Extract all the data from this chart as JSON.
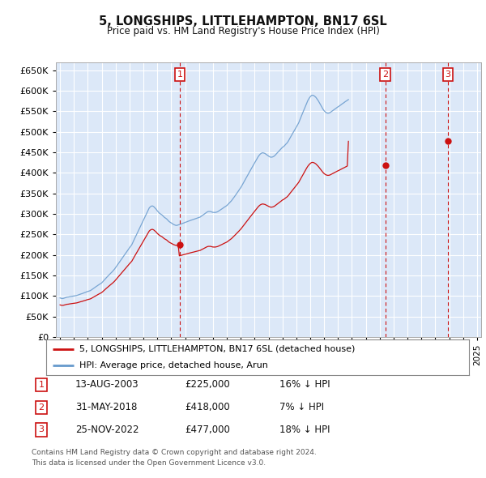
{
  "title": "5, LONGSHIPS, LITTLEHAMPTON, BN17 6SL",
  "subtitle": "Price paid vs. HM Land Registry's House Price Index (HPI)",
  "bg_color": "#ffffff",
  "plot_bg_color": "#dce8f8",
  "grid_color": "#ffffff",
  "hpi_color": "#6699cc",
  "price_color": "#cc1111",
  "ylim": [
    0,
    670000
  ],
  "yticks": [
    0,
    50000,
    100000,
    150000,
    200000,
    250000,
    300000,
    350000,
    400000,
    450000,
    500000,
    550000,
    600000,
    650000
  ],
  "xlim_start": 1994.7,
  "xlim_end": 2025.3,
  "legend_label_price": "5, LONGSHIPS, LITTLEHAMPTON, BN17 6SL (detached house)",
  "legend_label_hpi": "HPI: Average price, detached house, Arun",
  "sales": [
    {
      "index": 1,
      "date_label": "13-AUG-2003",
      "price_label": "£225,000",
      "pct_label": "16% ↓ HPI",
      "year": 2003.62,
      "price": 225000
    },
    {
      "index": 2,
      "date_label": "31-MAY-2018",
      "price_label": "£418,000",
      "pct_label": "7% ↓ HPI",
      "year": 2018.41,
      "price": 418000
    },
    {
      "index": 3,
      "date_label": "25-NOV-2022",
      "price_label": "£477,000",
      "pct_label": "18% ↓ HPI",
      "year": 2022.9,
      "price": 477000
    }
  ],
  "footnote1": "Contains HM Land Registry data © Crown copyright and database right 2024.",
  "footnote2": "This data is licensed under the Open Government Licence v3.0.",
  "hpi_monthly": [
    95000,
    94000,
    93500,
    94000,
    95000,
    96000,
    97000,
    97500,
    98000,
    98500,
    99000,
    99500,
    100000,
    100500,
    101000,
    102000,
    103000,
    104000,
    105000,
    106000,
    107000,
    108000,
    109000,
    110000,
    111000,
    112000,
    113000,
    115000,
    117000,
    119000,
    121000,
    123000,
    125000,
    127000,
    129000,
    131000,
    133000,
    136000,
    139000,
    142000,
    145000,
    148000,
    151000,
    154000,
    157000,
    160000,
    163000,
    166000,
    170000,
    174000,
    178000,
    182000,
    186000,
    190000,
    194000,
    198000,
    202000,
    206000,
    210000,
    214000,
    218000,
    222000,
    226000,
    232000,
    238000,
    244000,
    250000,
    256000,
    262000,
    268000,
    274000,
    280000,
    286000,
    292000,
    298000,
    304000,
    310000,
    315000,
    318000,
    320000,
    320000,
    318000,
    315000,
    312000,
    308000,
    305000,
    302000,
    300000,
    298000,
    295000,
    292000,
    290000,
    288000,
    285000,
    282000,
    280000,
    278000,
    276000,
    274000,
    273000,
    272000,
    272000,
    273000,
    274000,
    275000,
    276000,
    277000,
    278000,
    279000,
    280000,
    281000,
    282000,
    283000,
    284000,
    285000,
    286000,
    287000,
    288000,
    289000,
    290000,
    291000,
    292000,
    294000,
    296000,
    298000,
    300000,
    302000,
    304000,
    305000,
    305000,
    305000,
    304000,
    303000,
    303000,
    303000,
    304000,
    305000,
    307000,
    309000,
    311000,
    313000,
    315000,
    317000,
    319000,
    321000,
    324000,
    327000,
    330000,
    333000,
    337000,
    341000,
    345000,
    349000,
    353000,
    357000,
    361000,
    365000,
    370000,
    375000,
    380000,
    385000,
    390000,
    395000,
    400000,
    405000,
    410000,
    415000,
    420000,
    425000,
    430000,
    435000,
    440000,
    444000,
    447000,
    449000,
    450000,
    449000,
    448000,
    446000,
    444000,
    442000,
    440000,
    439000,
    439000,
    440000,
    442000,
    445000,
    448000,
    451000,
    454000,
    457000,
    460000,
    463000,
    465000,
    468000,
    471000,
    474000,
    478000,
    483000,
    488000,
    493000,
    498000,
    503000,
    508000,
    513000,
    518000,
    523000,
    530000,
    537000,
    544000,
    551000,
    558000,
    565000,
    572000,
    578000,
    583000,
    587000,
    590000,
    591000,
    590000,
    588000,
    585000,
    581000,
    577000,
    572000,
    567000,
    562000,
    557000,
    553000,
    550000,
    548000,
    547000,
    547000,
    548000,
    550000,
    552000,
    554000,
    556000,
    558000,
    560000,
    562000,
    564000,
    566000,
    568000,
    570000,
    572000,
    574000,
    576000,
    578000,
    580000
  ],
  "hatch_start_year": 2024.5
}
